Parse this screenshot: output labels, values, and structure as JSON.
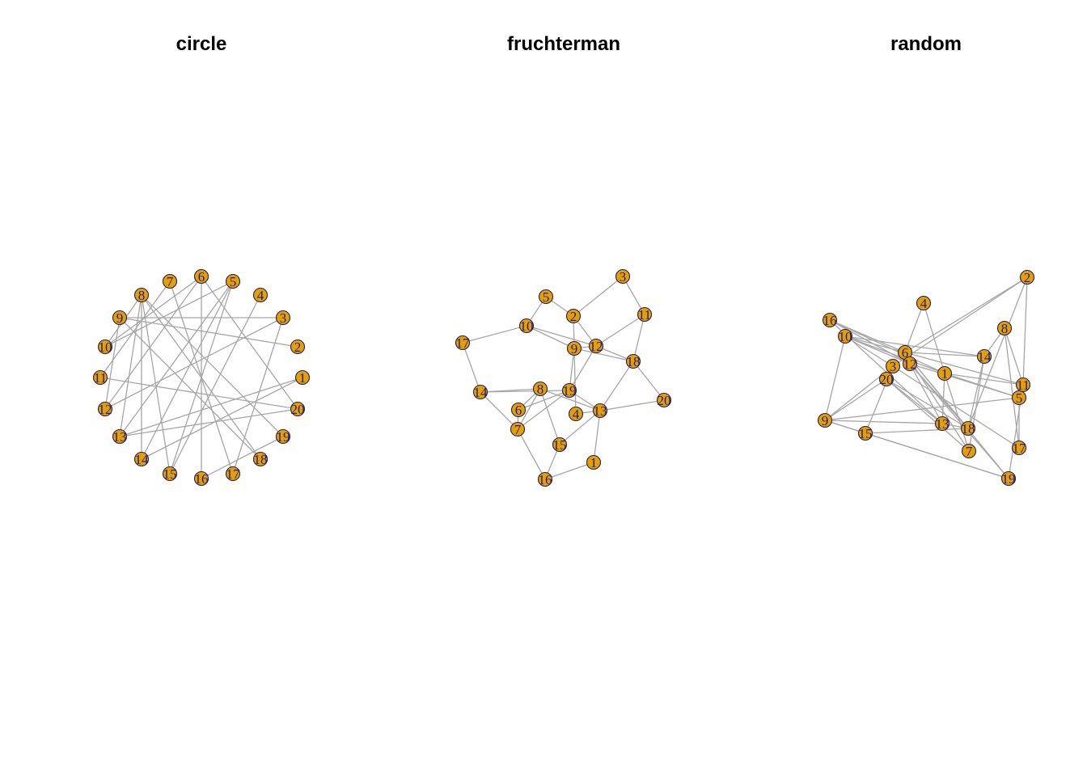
{
  "style": {
    "node_fill": "#e69f00",
    "node_border": "#1f1f5c",
    "label_color": "#1c1c8c",
    "edge_color": "#a6a6a6",
    "background": "#ffffff"
  },
  "graph": {
    "nodes": [
      "1",
      "2",
      "3",
      "4",
      "5",
      "6",
      "7",
      "8",
      "9",
      "10",
      "11",
      "12",
      "13",
      "14",
      "15",
      "16",
      "17",
      "18",
      "19",
      "20"
    ]
  },
  "panels": [
    {
      "title": "circle"
    },
    {
      "title": "fruchterman"
    },
    {
      "title": "random"
    }
  ]
}
